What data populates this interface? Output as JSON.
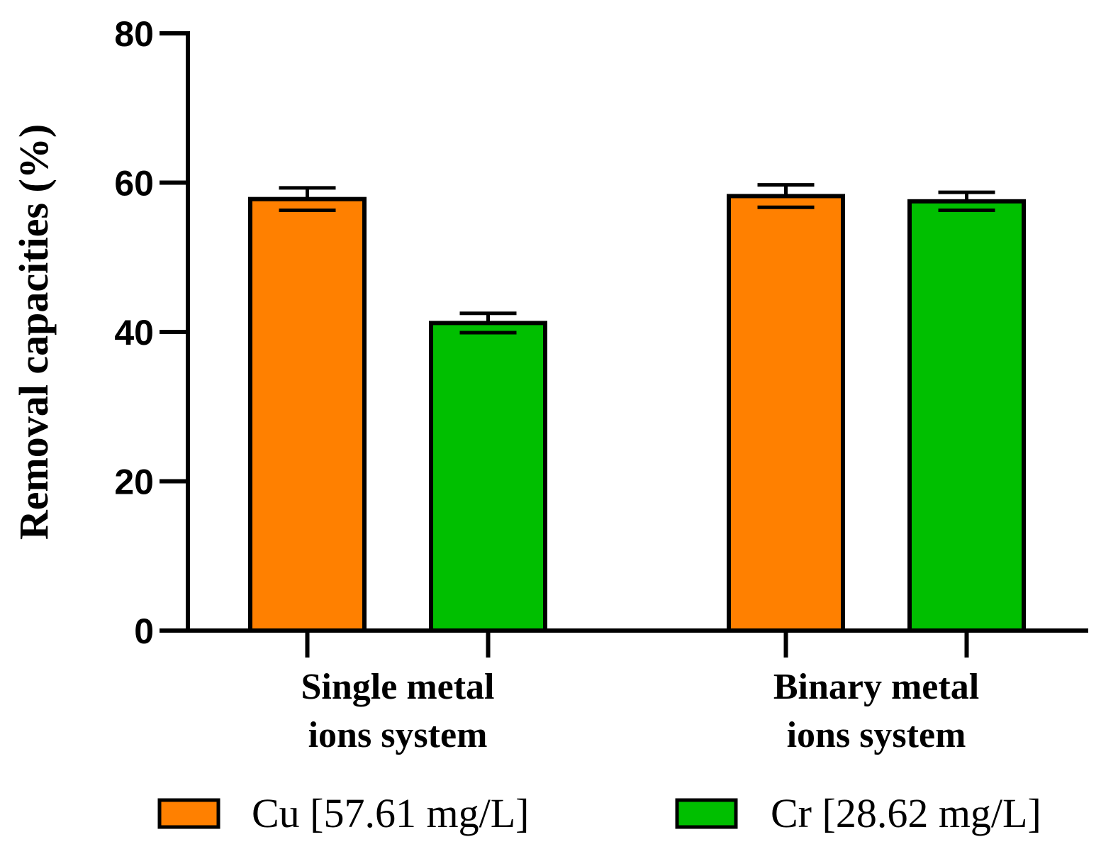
{
  "chart_data": {
    "type": "bar",
    "title": "",
    "xlabel": "",
    "ylabel": "Removal capacities (%)",
    "ylim": [
      0,
      80
    ],
    "yticks": [
      "0",
      "20",
      "40",
      "60",
      "80"
    ],
    "grid": false,
    "legend_position": "bottom",
    "categories": [
      [
        "Single metal",
        "ions system"
      ],
      [
        "Binary metal",
        "ions system"
      ]
    ],
    "series": [
      {
        "name": "Cu [57.61 mg/L]",
        "color": "#FF8000",
        "values": [
          57.8,
          58.2
        ],
        "errors": [
          1.5,
          1.5
        ]
      },
      {
        "name": "Cr [28.62 mg/L]",
        "color": "#00BF00",
        "values": [
          41.2,
          57.5
        ],
        "errors": [
          1.3,
          1.2
        ]
      }
    ]
  }
}
